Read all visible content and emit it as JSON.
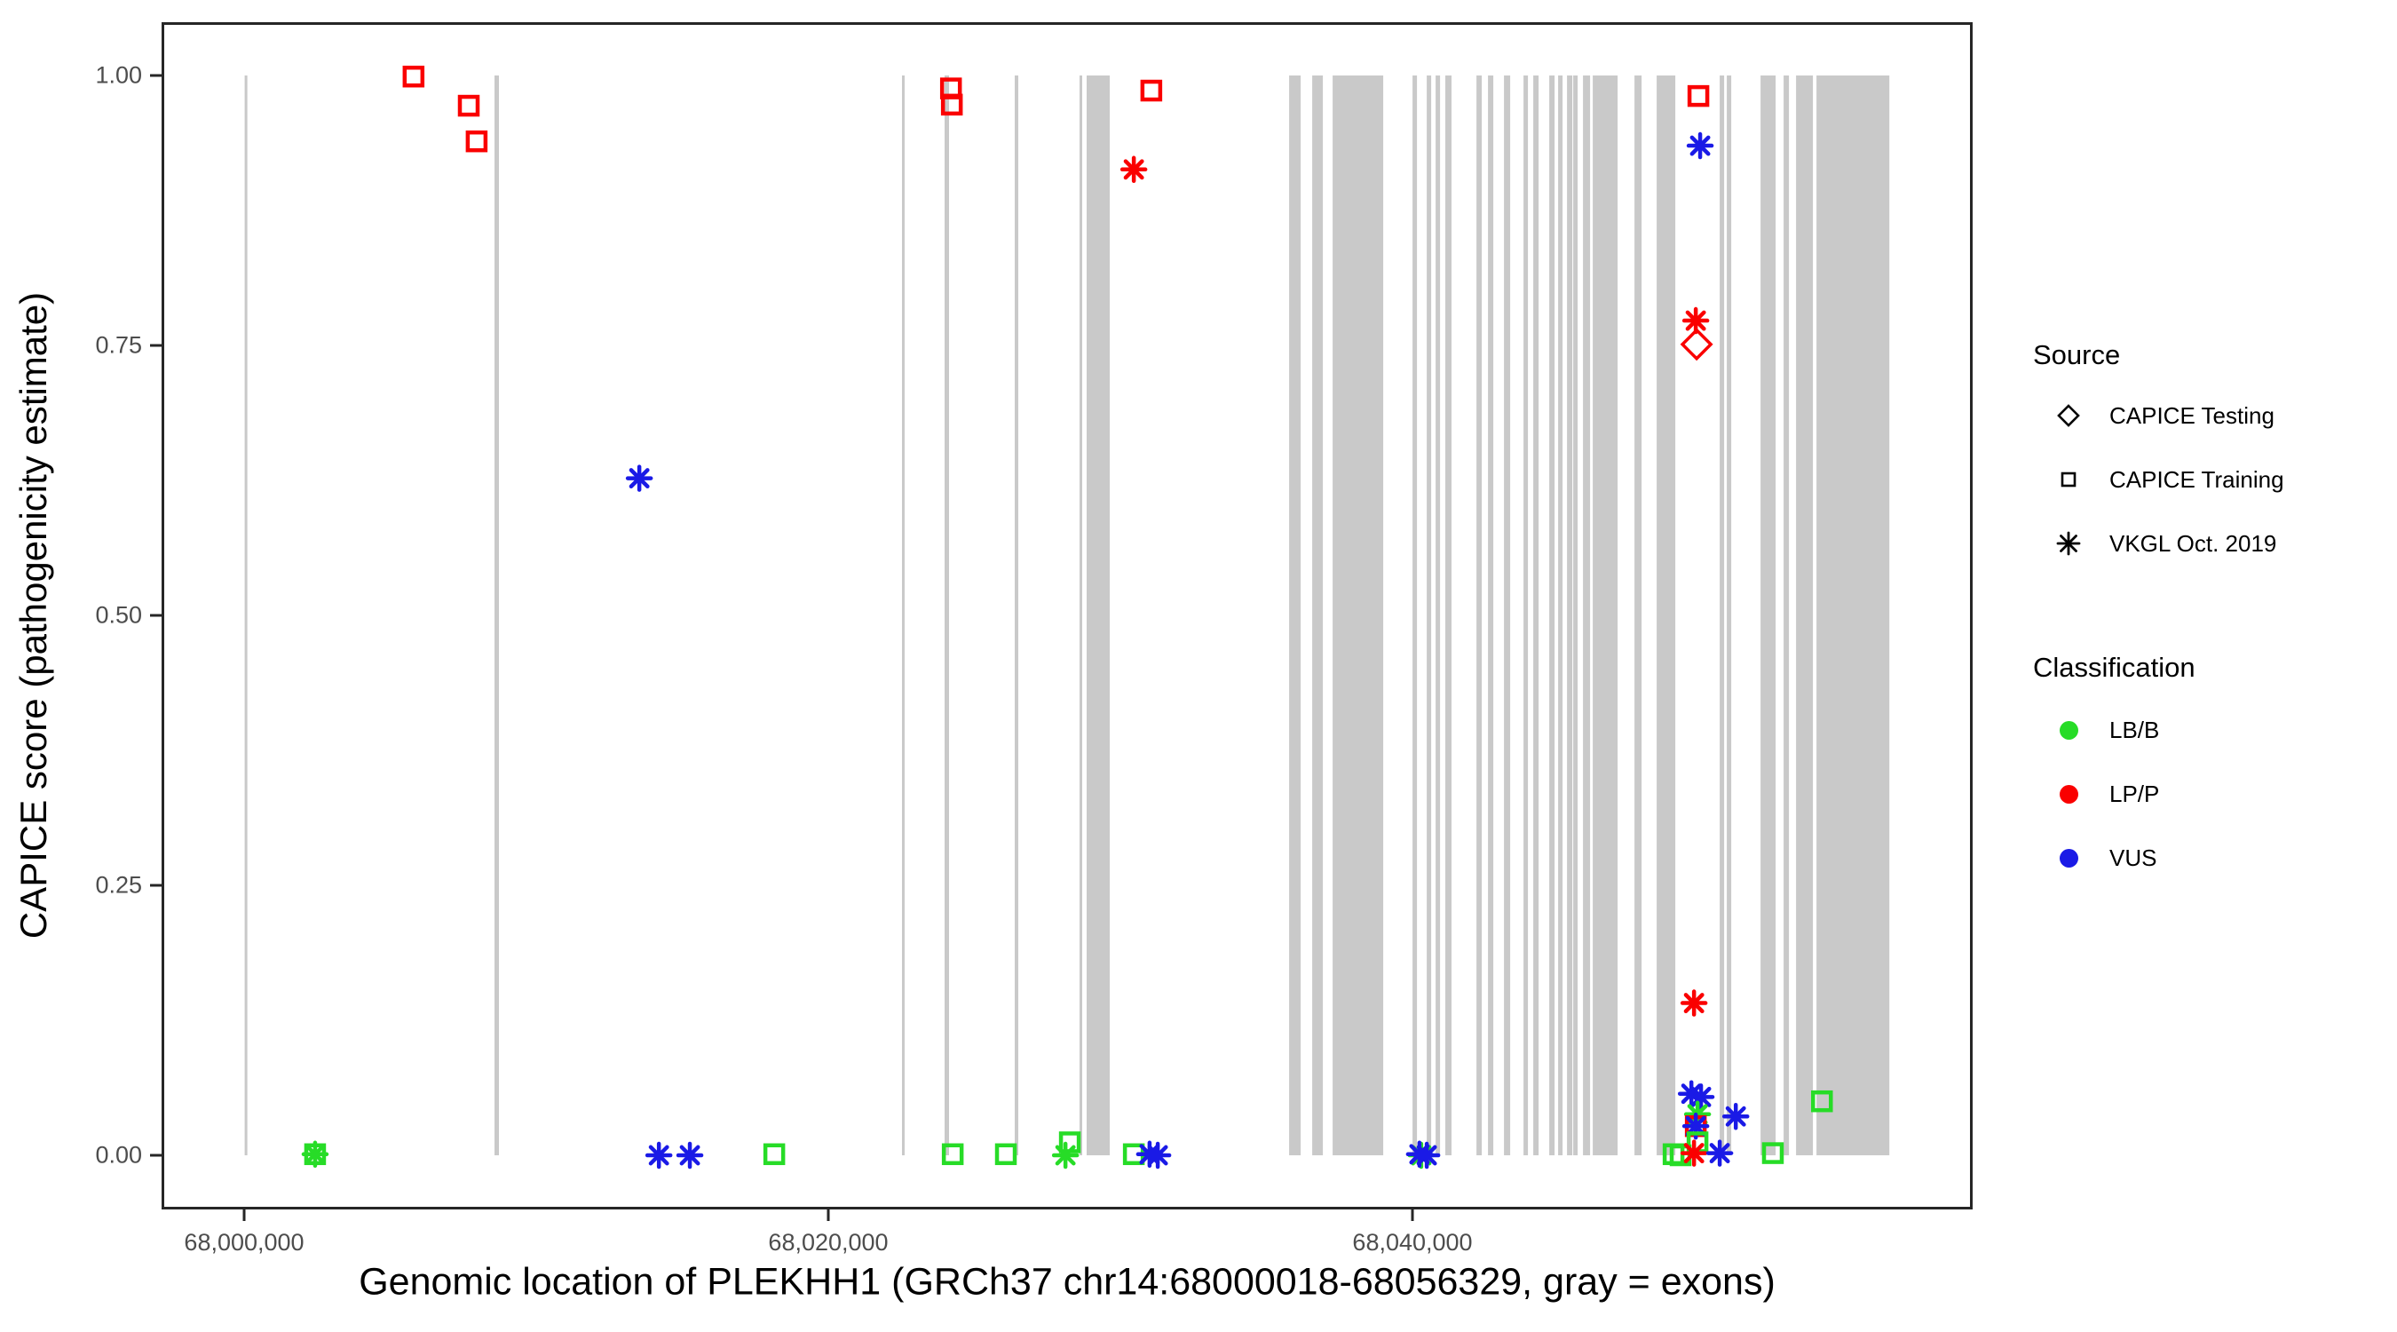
{
  "figure": {
    "x_axis": {
      "label": "Genomic location of PLEKHH1 (GRCh37 chr14:68000018-68056329, gray = exons)",
      "ticks": [
        {
          "value": 68000000,
          "label": "68,000,000"
        },
        {
          "value": 68020000,
          "label": "68,020,000"
        },
        {
          "value": 68040000,
          "label": "68,040,000"
        }
      ]
    },
    "y_axis": {
      "label": "CAPICE score (pathogenicity estimate)",
      "ticks": [
        {
          "value": 0.0,
          "label": "0.00"
        },
        {
          "value": 0.25,
          "label": "0.25"
        },
        {
          "value": 0.5,
          "label": "0.50"
        },
        {
          "value": 0.75,
          "label": "0.75"
        },
        {
          "value": 1.0,
          "label": "1.00"
        }
      ]
    }
  },
  "legend": {
    "source": {
      "title": "Source",
      "items": [
        {
          "label": "CAPICE Testing",
          "shape": "diamond"
        },
        {
          "label": "CAPICE Training",
          "shape": "square"
        },
        {
          "label": "VKGL Oct. 2019",
          "shape": "asterisk"
        }
      ]
    },
    "classification": {
      "title": "Classification",
      "items": [
        {
          "label": "LB/B",
          "color": "#27DC27"
        },
        {
          "label": "LP/P",
          "color": "#FA0000"
        },
        {
          "label": "VUS",
          "color": "#1A1AE6"
        }
      ]
    }
  },
  "colors": {
    "exon": "#C9C9C9",
    "axis": "#262626",
    "tick_text": "#4D4D4D",
    "classification": {
      "LB/B": "#27DC27",
      "LP/P": "#FA0000",
      "VUS": "#1A1AE6"
    }
  },
  "chart_data": {
    "type": "scatter",
    "title": "",
    "xlabel": "Genomic location of PLEKHH1 (GRCh37 chr14:68000018-68056329, gray = exons)",
    "ylabel": "CAPICE score (pathogenicity estimate)",
    "xlim": [
      67997200,
      68058400
    ],
    "ylim": [
      0,
      1
    ],
    "grid": false,
    "legend_position": "right",
    "shape_by_source": {
      "CAPICE Testing": "open diamond",
      "CAPICE Training": "open square",
      "VKGL Oct. 2019": "asterisk"
    },
    "color_by_classification": {
      "LB/B": "green",
      "LP/P": "red",
      "VUS": "blue"
    },
    "exons": [
      [
        68000018,
        68000110
      ],
      [
        68008572,
        68008725
      ],
      [
        68022524,
        68022615
      ],
      [
        68023983,
        68024135
      ],
      [
        68026384,
        68026506
      ],
      [
        68028603,
        68028695
      ],
      [
        68028846,
        68029637
      ],
      [
        68035777,
        68036172
      ],
      [
        68036567,
        68036931
      ],
      [
        68037266,
        68039000
      ],
      [
        68040002,
        68040154
      ],
      [
        68040488,
        68040640
      ],
      [
        68040792,
        68040944
      ],
      [
        68041126,
        68041340
      ],
      [
        68042190,
        68042373
      ],
      [
        68042586,
        68042769
      ],
      [
        68043133,
        68043346
      ],
      [
        68043802,
        68043954
      ],
      [
        68044136,
        68044319
      ],
      [
        68044683,
        68044866
      ],
      [
        68044987,
        68045139
      ],
      [
        68045291,
        68045474
      ],
      [
        68045504,
        68045656
      ],
      [
        68045838,
        68046082
      ],
      [
        68046173,
        68047024
      ],
      [
        68047601,
        68047845
      ],
      [
        68048361,
        68049000
      ],
      [
        68050520,
        68050672
      ],
      [
        68050763,
        68050915
      ],
      [
        68051918,
        68052435
      ],
      [
        68052708,
        68052891
      ],
      [
        68053134,
        68053712
      ],
      [
        68053833,
        68056329
      ]
    ],
    "points": [
      {
        "x": 68005800,
        "y": 0.999,
        "source": "CAPICE Training",
        "classification": "LP/P"
      },
      {
        "x": 68007690,
        "y": 0.972,
        "source": "CAPICE Training",
        "classification": "LP/P"
      },
      {
        "x": 68007960,
        "y": 0.939,
        "source": "CAPICE Training",
        "classification": "LP/P"
      },
      {
        "x": 68013530,
        "y": 0.627,
        "source": "VKGL Oct. 2019",
        "classification": "VUS"
      },
      {
        "x": 68024200,
        "y": 0.988,
        "source": "CAPICE Training",
        "classification": "LP/P"
      },
      {
        "x": 68024230,
        "y": 0.973,
        "source": "CAPICE Training",
        "classification": "LP/P"
      },
      {
        "x": 68031060,
        "y": 0.986,
        "source": "CAPICE Training",
        "classification": "LP/P"
      },
      {
        "x": 68030460,
        "y": 0.913,
        "source": "VKGL Oct. 2019",
        "classification": "LP/P"
      },
      {
        "x": 68049790,
        "y": 0.981,
        "source": "CAPICE Training",
        "classification": "LP/P"
      },
      {
        "x": 68049850,
        "y": 0.935,
        "source": "VKGL Oct. 2019",
        "classification": "VUS"
      },
      {
        "x": 68049700,
        "y": 0.773,
        "source": "VKGL Oct. 2019",
        "classification": "LP/P"
      },
      {
        "x": 68049730,
        "y": 0.751,
        "source": "CAPICE Testing",
        "classification": "LP/P"
      },
      {
        "x": 68049640,
        "y": 0.141,
        "source": "VKGL Oct. 2019",
        "classification": "LP/P"
      },
      {
        "x": 68049550,
        "y": 0.057,
        "source": "VKGL Oct. 2019",
        "classification": "VUS"
      },
      {
        "x": 68049880,
        "y": 0.054,
        "source": "VKGL Oct. 2019",
        "classification": "VUS"
      },
      {
        "x": 68049760,
        "y": 0.038,
        "source": "VKGL Oct. 2019",
        "classification": "LB/B"
      },
      {
        "x": 68049700,
        "y": 0.027,
        "source": "CAPICE Training",
        "classification": "LP/P"
      },
      {
        "x": 68049700,
        "y": 0.027,
        "source": "VKGL Oct. 2019",
        "classification": "VUS"
      },
      {
        "x": 68049760,
        "y": 0.012,
        "source": "CAPICE Training",
        "classification": "LB/B"
      },
      {
        "x": 68051070,
        "y": 0.036,
        "source": "VKGL Oct. 2019",
        "classification": "VUS"
      },
      {
        "x": 68054020,
        "y": 0.05,
        "source": "CAPICE Training",
        "classification": "LB/B"
      },
      {
        "x": 68002430,
        "y": 0.001,
        "source": "CAPICE Training",
        "classification": "LB/B"
      },
      {
        "x": 68002430,
        "y": 0.001,
        "source": "VKGL Oct. 2019",
        "classification": "LB/B"
      },
      {
        "x": 68014200,
        "y": 0.0,
        "source": "VKGL Oct. 2019",
        "classification": "VUS"
      },
      {
        "x": 68015260,
        "y": 0.0,
        "source": "VKGL Oct. 2019",
        "classification": "VUS"
      },
      {
        "x": 68018150,
        "y": 0.001,
        "source": "CAPICE Training",
        "classification": "LB/B"
      },
      {
        "x": 68024260,
        "y": 0.001,
        "source": "CAPICE Training",
        "classification": "LB/B"
      },
      {
        "x": 68026080,
        "y": 0.001,
        "source": "CAPICE Training",
        "classification": "LB/B"
      },
      {
        "x": 68028270,
        "y": 0.012,
        "source": "CAPICE Training",
        "classification": "LB/B"
      },
      {
        "x": 68028120,
        "y": 0.0,
        "source": "VKGL Oct. 2019",
        "classification": "LB/B"
      },
      {
        "x": 68030460,
        "y": 0.001,
        "source": "CAPICE Training",
        "classification": "LB/B"
      },
      {
        "x": 68031000,
        "y": 0.001,
        "source": "VKGL Oct. 2019",
        "classification": "VUS"
      },
      {
        "x": 68031280,
        "y": 0.0,
        "source": "VKGL Oct. 2019",
        "classification": "VUS"
      },
      {
        "x": 68040300,
        "y": 0.0,
        "source": "VKGL Oct. 2019",
        "classification": "LB/B"
      },
      {
        "x": 68040240,
        "y": 0.001,
        "source": "VKGL Oct. 2019",
        "classification": "VUS"
      },
      {
        "x": 68040490,
        "y": 0.0,
        "source": "VKGL Oct. 2019",
        "classification": "VUS"
      },
      {
        "x": 68048940,
        "y": 0.001,
        "source": "CAPICE Training",
        "classification": "LB/B"
      },
      {
        "x": 68049180,
        "y": 0.0,
        "source": "CAPICE Training",
        "classification": "LB/B"
      },
      {
        "x": 68049640,
        "y": 0.002,
        "source": "VKGL Oct. 2019",
        "classification": "LP/P"
      },
      {
        "x": 68050520,
        "y": 0.002,
        "source": "VKGL Oct. 2019",
        "classification": "VUS"
      },
      {
        "x": 68052340,
        "y": 0.002,
        "source": "CAPICE Training",
        "classification": "LB/B"
      }
    ]
  }
}
